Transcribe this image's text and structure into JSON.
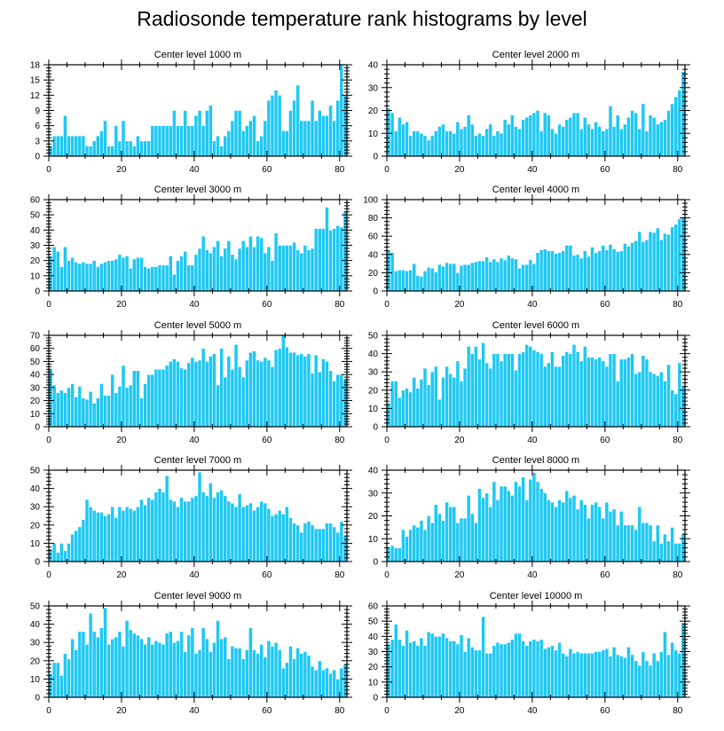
{
  "title": "Radiosonde temperature rank histograms by level",
  "colors": {
    "bar": "#1ec8f5",
    "bar_edge": "#ffffff",
    "frame": "#000000"
  },
  "chart_data": [
    {
      "type": "bar",
      "title": "Center level 1000 m",
      "xlabel": "",
      "ylabel": "",
      "xlim": [
        0,
        82
      ],
      "ylim": [
        0,
        18
      ],
      "xticks": [
        0,
        20,
        40,
        60,
        80
      ],
      "yticks": [
        0,
        3,
        6,
        9,
        12,
        15,
        18
      ],
      "values": [
        2,
        4,
        4,
        4,
        8,
        4,
        4,
        4,
        4,
        4,
        2,
        2,
        3,
        4,
        5,
        7,
        2,
        2,
        6,
        3,
        7,
        3,
        3,
        2,
        4,
        3,
        3,
        3,
        6,
        6,
        6,
        6,
        6,
        6,
        9,
        6,
        6,
        9,
        6,
        6,
        8,
        9,
        6,
        9,
        10,
        3,
        4,
        2,
        4,
        5,
        7,
        9,
        9,
        5,
        6,
        7,
        8,
        3,
        4,
        7,
        11,
        12,
        13,
        12,
        5,
        5,
        9,
        11,
        14,
        7,
        7,
        7,
        11,
        7,
        9,
        8,
        8,
        10,
        7,
        11,
        18,
        12
      ]
    },
    {
      "type": "bar",
      "title": "Center level 2000 m",
      "xlabel": "",
      "ylabel": "",
      "xlim": [
        0,
        82
      ],
      "ylim": [
        0,
        40
      ],
      "xticks": [
        0,
        20,
        40,
        60,
        80
      ],
      "yticks": [
        0,
        10,
        20,
        30,
        40
      ],
      "values": [
        21,
        19,
        11,
        17,
        14,
        15,
        9,
        11,
        11,
        10,
        9,
        7,
        9,
        11,
        13,
        14,
        11,
        11,
        10,
        15,
        12,
        13,
        18,
        14,
        9,
        10,
        9,
        12,
        14,
        9,
        11,
        10,
        16,
        14,
        18,
        13,
        12,
        16,
        17,
        18,
        19,
        20,
        11,
        19,
        18,
        12,
        10,
        14,
        13,
        16,
        17,
        19,
        19,
        12,
        17,
        14,
        12,
        15,
        13,
        11,
        12,
        22,
        13,
        18,
        12,
        14,
        17,
        20,
        19,
        12,
        23,
        11,
        18,
        17,
        14,
        15,
        16,
        20,
        23,
        26,
        29,
        37
      ]
    },
    {
      "type": "bar",
      "title": "Center level 3000 m",
      "xlabel": "",
      "ylabel": "",
      "xlim": [
        0,
        82
      ],
      "ylim": [
        0,
        60
      ],
      "xticks": [
        0,
        20,
        40,
        60,
        80
      ],
      "yticks": [
        0,
        10,
        20,
        30,
        40,
        50,
        60
      ],
      "values": [
        23,
        29,
        26,
        16,
        29,
        20,
        22,
        19,
        18,
        19,
        18,
        18,
        20,
        16,
        18,
        19,
        20,
        20,
        21,
        24,
        22,
        23,
        15,
        21,
        22,
        22,
        16,
        15,
        16,
        16,
        17,
        17,
        17,
        23,
        11,
        20,
        23,
        26,
        17,
        17,
        24,
        28,
        36,
        27,
        25,
        29,
        33,
        23,
        28,
        33,
        24,
        21,
        28,
        33,
        29,
        36,
        29,
        36,
        35,
        25,
        29,
        20,
        38,
        30,
        30,
        30,
        30,
        32,
        27,
        25,
        30,
        27,
        28,
        41,
        41,
        41,
        55,
        40,
        41,
        43,
        42,
        52
      ]
    },
    {
      "type": "bar",
      "title": "Center level 4000 m",
      "xlabel": "",
      "ylabel": "",
      "xlim": [
        0,
        82
      ],
      "ylim": [
        0,
        100
      ],
      "xticks": [
        0,
        20,
        40,
        60,
        80
      ],
      "yticks": [
        0,
        20,
        40,
        60,
        80,
        100
      ],
      "values": [
        44,
        42,
        22,
        23,
        23,
        22,
        23,
        30,
        17,
        16,
        22,
        26,
        25,
        21,
        29,
        27,
        31,
        30,
        30,
        20,
        28,
        29,
        29,
        31,
        32,
        33,
        33,
        37,
        32,
        35,
        32,
        36,
        34,
        39,
        36,
        35,
        25,
        29,
        29,
        34,
        30,
        42,
        45,
        46,
        44,
        44,
        41,
        42,
        44,
        50,
        50,
        39,
        40,
        36,
        44,
        38,
        48,
        42,
        44,
        50,
        45,
        51,
        46,
        43,
        44,
        52,
        49,
        53,
        55,
        65,
        54,
        56,
        65,
        64,
        69,
        56,
        63,
        62,
        70,
        73,
        79,
        81
      ]
    },
    {
      "type": "bar",
      "title": "Center level 5000 m",
      "xlabel": "",
      "ylabel": "",
      "xlim": [
        0,
        82
      ],
      "ylim": [
        0,
        70
      ],
      "xticks": [
        0,
        20,
        40,
        60,
        80
      ],
      "yticks": [
        0,
        10,
        20,
        30,
        40,
        50,
        60,
        70
      ],
      "values": [
        44,
        32,
        26,
        28,
        26,
        30,
        33,
        23,
        31,
        22,
        21,
        27,
        18,
        22,
        33,
        24,
        24,
        40,
        26,
        31,
        47,
        30,
        32,
        43,
        43,
        22,
        33,
        40,
        40,
        44,
        44,
        44,
        47,
        50,
        52,
        50,
        45,
        44,
        49,
        53,
        50,
        51,
        60,
        50,
        54,
        56,
        32,
        60,
        38,
        54,
        44,
        63,
        46,
        38,
        51,
        57,
        58,
        51,
        50,
        53,
        51,
        46,
        59,
        60,
        71,
        61,
        57,
        57,
        55,
        56,
        54,
        56,
        41,
        55,
        42,
        52,
        50,
        43,
        35,
        40,
        40,
        36
      ]
    },
    {
      "type": "bar",
      "title": "Center level 6000 m",
      "xlabel": "",
      "ylabel": "",
      "xlim": [
        0,
        82
      ],
      "ylim": [
        0,
        50
      ],
      "xticks": [
        0,
        20,
        40,
        60,
        80
      ],
      "yticks": [
        0,
        10,
        20,
        30,
        40,
        50
      ],
      "values": [
        13,
        25,
        25,
        16,
        20,
        21,
        19,
        27,
        21,
        26,
        32,
        23,
        30,
        33,
        15,
        27,
        33,
        29,
        27,
        36,
        25,
        32,
        44,
        40,
        44,
        37,
        46,
        35,
        32,
        40,
        40,
        36,
        40,
        40,
        40,
        31,
        40,
        41,
        45,
        44,
        42,
        41,
        40,
        33,
        35,
        41,
        33,
        33,
        39,
        41,
        40,
        45,
        41,
        36,
        44,
        38,
        38,
        37,
        38,
        36,
        33,
        40,
        40,
        25,
        37,
        37,
        38,
        40,
        29,
        30,
        39,
        37,
        30,
        29,
        28,
        30,
        25,
        34,
        20,
        18,
        35,
        22
      ]
    },
    {
      "type": "bar",
      "title": "Center level 7000 m",
      "xlabel": "",
      "ylabel": "",
      "xlim": [
        0,
        82
      ],
      "ylim": [
        0,
        50
      ],
      "xticks": [
        0,
        20,
        40,
        60,
        80
      ],
      "yticks": [
        0,
        10,
        20,
        30,
        40,
        50
      ],
      "values": [
        7,
        10,
        5,
        10,
        6,
        10,
        15,
        17,
        19,
        23,
        34,
        30,
        28,
        27,
        27,
        25,
        26,
        30,
        24,
        30,
        28,
        30,
        29,
        28,
        30,
        34,
        31,
        35,
        34,
        38,
        40,
        38,
        47,
        34,
        33,
        30,
        35,
        33,
        33,
        35,
        36,
        49,
        38,
        36,
        43,
        35,
        38,
        39,
        36,
        33,
        32,
        30,
        37,
        30,
        31,
        32,
        28,
        30,
        33,
        32,
        29,
        25,
        26,
        28,
        26,
        30,
        24,
        21,
        20,
        16,
        21,
        22,
        20,
        18,
        18,
        18,
        21,
        21,
        19,
        16,
        22,
        14
      ]
    },
    {
      "type": "bar",
      "title": "Center level 8000 m",
      "xlabel": "",
      "ylabel": "",
      "xlim": [
        0,
        82
      ],
      "ylim": [
        0,
        40
      ],
      "xticks": [
        0,
        20,
        40,
        60,
        80
      ],
      "yticks": [
        0,
        10,
        20,
        30,
        40
      ],
      "values": [
        6,
        7,
        6,
        6,
        14,
        11,
        14,
        16,
        15,
        18,
        14,
        20,
        17,
        25,
        21,
        18,
        26,
        24,
        24,
        17,
        19,
        19,
        29,
        21,
        17,
        32,
        28,
        30,
        24,
        35,
        27,
        33,
        33,
        31,
        29,
        35,
        33,
        37,
        27,
        36,
        39,
        35,
        32,
        30,
        27,
        26,
        24,
        27,
        26,
        31,
        28,
        29,
        23,
        27,
        25,
        19,
        25,
        26,
        24,
        19,
        26,
        22,
        23,
        16,
        22,
        16,
        16,
        16,
        14,
        24,
        17,
        17,
        16,
        9,
        16,
        8,
        12,
        9,
        15,
        8,
        8,
        12
      ]
    },
    {
      "type": "bar",
      "title": "Center level 9000 m",
      "xlabel": "",
      "ylabel": "",
      "xlim": [
        0,
        82
      ],
      "ylim": [
        0,
        50
      ],
      "xticks": [
        0,
        20,
        40,
        60,
        80
      ],
      "yticks": [
        0,
        10,
        20,
        30,
        40,
        50
      ],
      "values": [
        13,
        19,
        19,
        12,
        24,
        21,
        32,
        26,
        36,
        36,
        29,
        46,
        36,
        33,
        38,
        49,
        29,
        32,
        33,
        36,
        28,
        42,
        37,
        35,
        34,
        32,
        29,
        33,
        29,
        31,
        30,
        29,
        35,
        36,
        30,
        31,
        36,
        25,
        34,
        38,
        24,
        26,
        38,
        32,
        25,
        30,
        42,
        32,
        33,
        21,
        28,
        27,
        27,
        21,
        26,
        38,
        26,
        24,
        29,
        22,
        31,
        28,
        30,
        26,
        16,
        19,
        28,
        21,
        27,
        24,
        25,
        23,
        17,
        15,
        20,
        15,
        16,
        13,
        15,
        10,
        16,
        18
      ]
    },
    {
      "type": "bar",
      "title": "Center level 10000 m",
      "xlabel": "",
      "ylabel": "",
      "xlim": [
        0,
        82
      ],
      "ylim": [
        0,
        60
      ],
      "xticks": [
        0,
        20,
        40,
        60,
        80
      ],
      "yticks": [
        0,
        10,
        20,
        30,
        40,
        50,
        60
      ],
      "values": [
        35,
        38,
        48,
        38,
        34,
        44,
        36,
        37,
        34,
        39,
        34,
        43,
        42,
        40,
        40,
        42,
        39,
        37,
        37,
        35,
        41,
        30,
        39,
        33,
        31,
        31,
        53,
        29,
        29,
        34,
        36,
        35,
        35,
        36,
        38,
        42,
        42,
        37,
        34,
        37,
        38,
        37,
        38,
        32,
        33,
        34,
        31,
        36,
        29,
        27,
        32,
        29,
        30,
        29,
        29,
        29,
        29,
        30,
        30,
        31,
        32,
        27,
        33,
        28,
        27,
        26,
        33,
        28,
        24,
        21,
        30,
        24,
        21,
        29,
        24,
        30,
        43,
        28,
        36,
        31,
        29,
        49
      ]
    }
  ]
}
